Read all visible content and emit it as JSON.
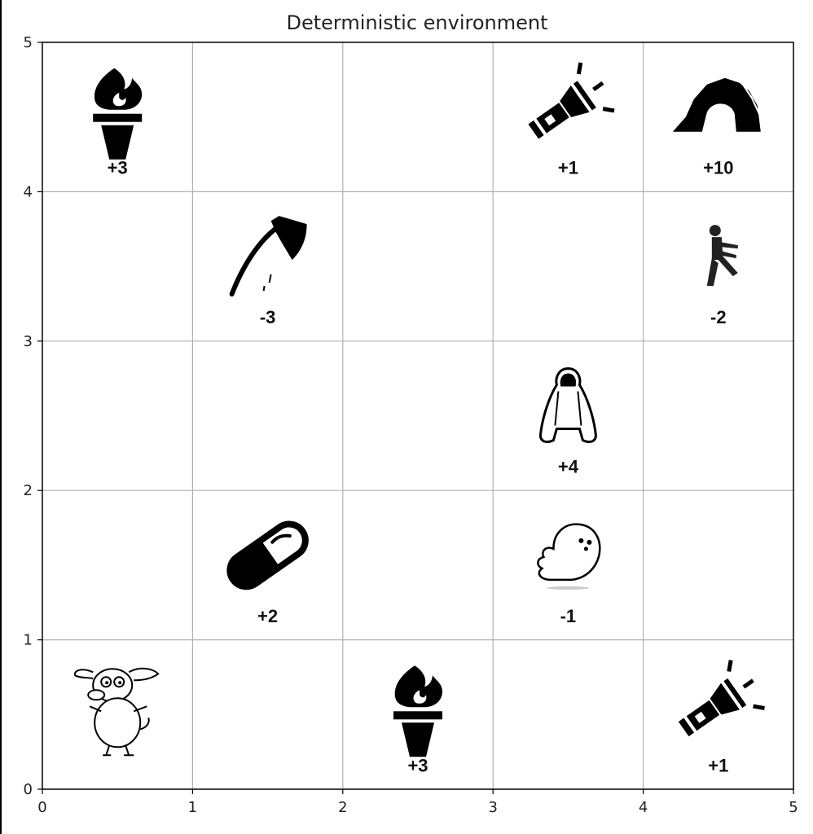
{
  "chart_data": {
    "type": "grid",
    "title": "Deterministic environment",
    "xlabel": "",
    "ylabel": "",
    "xlim": [
      0,
      5
    ],
    "ylim": [
      0,
      5
    ],
    "grid": true,
    "x_ticks": [
      "0",
      "1",
      "2",
      "3",
      "4",
      "5"
    ],
    "y_ticks": [
      "0",
      "1",
      "2",
      "3",
      "4",
      "5"
    ],
    "cells": [
      {
        "x": 0,
        "y": 4,
        "icon": "torch-icon",
        "reward": "+3"
      },
      {
        "x": 3,
        "y": 4,
        "icon": "flashlight-icon",
        "reward": "+1"
      },
      {
        "x": 4,
        "y": 4,
        "icon": "cave-icon",
        "reward": "+10"
      },
      {
        "x": 1,
        "y": 3,
        "icon": "axe-icon",
        "reward": "-3"
      },
      {
        "x": 4,
        "y": 3,
        "icon": "zombie-icon",
        "reward": "-2"
      },
      {
        "x": 3,
        "y": 2,
        "icon": "cloak-icon",
        "reward": "+4"
      },
      {
        "x": 1,
        "y": 1,
        "icon": "pill-icon",
        "reward": "+2"
      },
      {
        "x": 3,
        "y": 1,
        "icon": "ghost-icon",
        "reward": "-1"
      },
      {
        "x": 0,
        "y": 0,
        "icon": "dog-icon",
        "reward": ""
      },
      {
        "x": 2,
        "y": 0,
        "icon": "torch-icon",
        "reward": "+3"
      },
      {
        "x": 4,
        "y": 0,
        "icon": "flashlight-icon",
        "reward": "+1"
      }
    ]
  }
}
